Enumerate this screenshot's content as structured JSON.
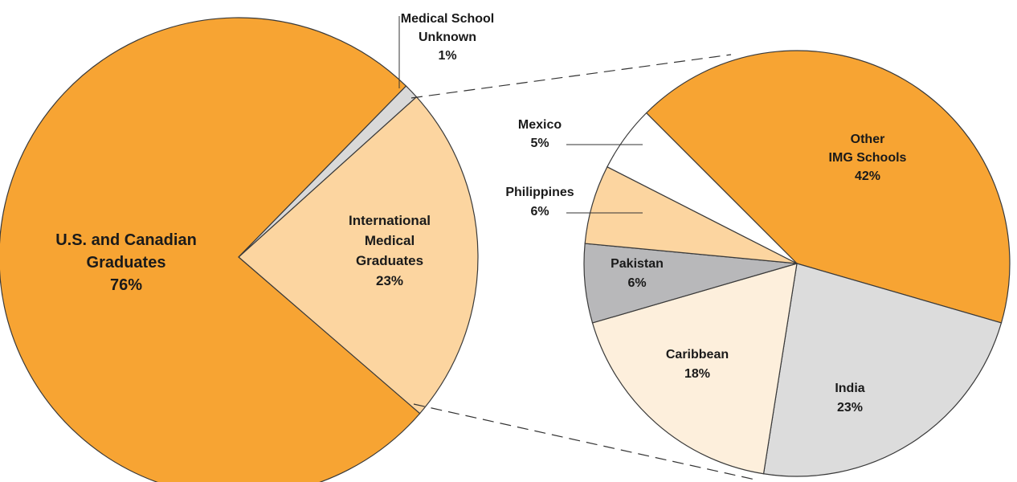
{
  "chart_data": [
    {
      "type": "pie",
      "categories": [
        [
          "International",
          "Medical",
          "Graduates"
        ],
        [
          "U.S. and Canadian",
          "Graduates"
        ],
        [
          "Medical School",
          "Unknown"
        ]
      ],
      "values": [
        23,
        76,
        1
      ],
      "value_labels": [
        "23%",
        "76%",
        "1%"
      ],
      "colors": [
        "#fcd5a0",
        "#f7a433",
        "#d9d9d9"
      ]
    },
    {
      "type": "pie",
      "categories": [
        [
          "Other",
          "IMG Schools"
        ],
        [
          "India"
        ],
        [
          "Caribbean"
        ],
        [
          "Pakistan"
        ],
        [
          "Philippines"
        ],
        [
          "Mexico"
        ]
      ],
      "values": [
        42,
        23,
        18,
        6,
        6,
        5
      ],
      "value_labels": [
        "42%",
        "23%",
        "18%",
        "6%",
        "6%",
        "5%"
      ],
      "colors": [
        "#f7a433",
        "#dcdcdc",
        "#fdefdc",
        "#b8b8ba",
        "#fcd5a0",
        "#ffffff"
      ]
    }
  ]
}
